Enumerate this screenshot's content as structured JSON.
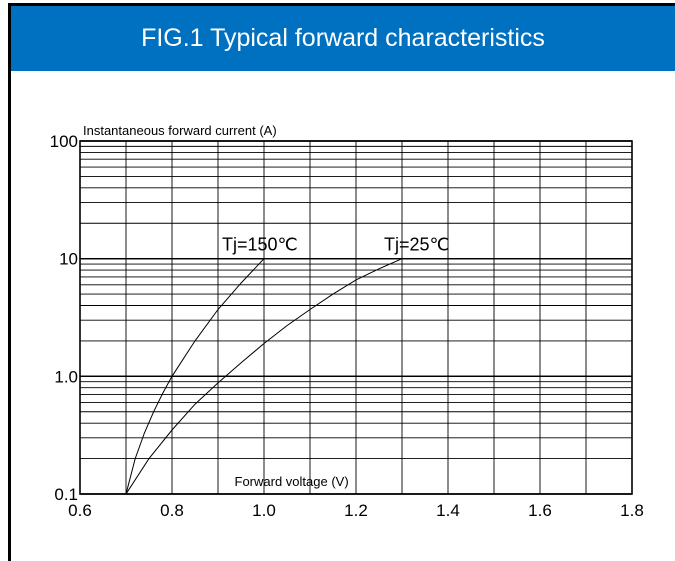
{
  "title": "FIG.1 Typical forward characteristics",
  "chart_data": {
    "type": "line",
    "title": "FIG.1 Typical forward characteristics",
    "xlabel": "Forward voltage (V)",
    "ylabel": "Instantaneous forward current (A)",
    "xlim": [
      0.6,
      1.8
    ],
    "ylim": [
      0.1,
      100
    ],
    "yscale": "log",
    "grid": true,
    "x_ticks": [
      "0.6",
      "0.8",
      "1.0",
      "1.2",
      "1.4",
      "1.6",
      "1.8"
    ],
    "y_ticks": [
      "0.1",
      "1.0",
      "10",
      "100"
    ],
    "series": [
      {
        "name": "Tj=150℃",
        "x": [
          0.7,
          0.72,
          0.74,
          0.76,
          0.78,
          0.8,
          0.85,
          0.9,
          0.95,
          1.0
        ],
        "y": [
          0.1,
          0.2,
          0.33,
          0.5,
          0.72,
          1.0,
          2.0,
          3.7,
          6.2,
          10.0
        ]
      },
      {
        "name": "Tj=25℃",
        "x": [
          0.7,
          0.75,
          0.8,
          0.85,
          0.9,
          0.95,
          1.0,
          1.05,
          1.1,
          1.15,
          1.2,
          1.25,
          1.3
        ],
        "y": [
          0.1,
          0.2,
          0.35,
          0.58,
          0.88,
          1.3,
          1.9,
          2.7,
          3.7,
          5.0,
          6.6,
          8.2,
          10.0
        ]
      }
    ]
  }
}
